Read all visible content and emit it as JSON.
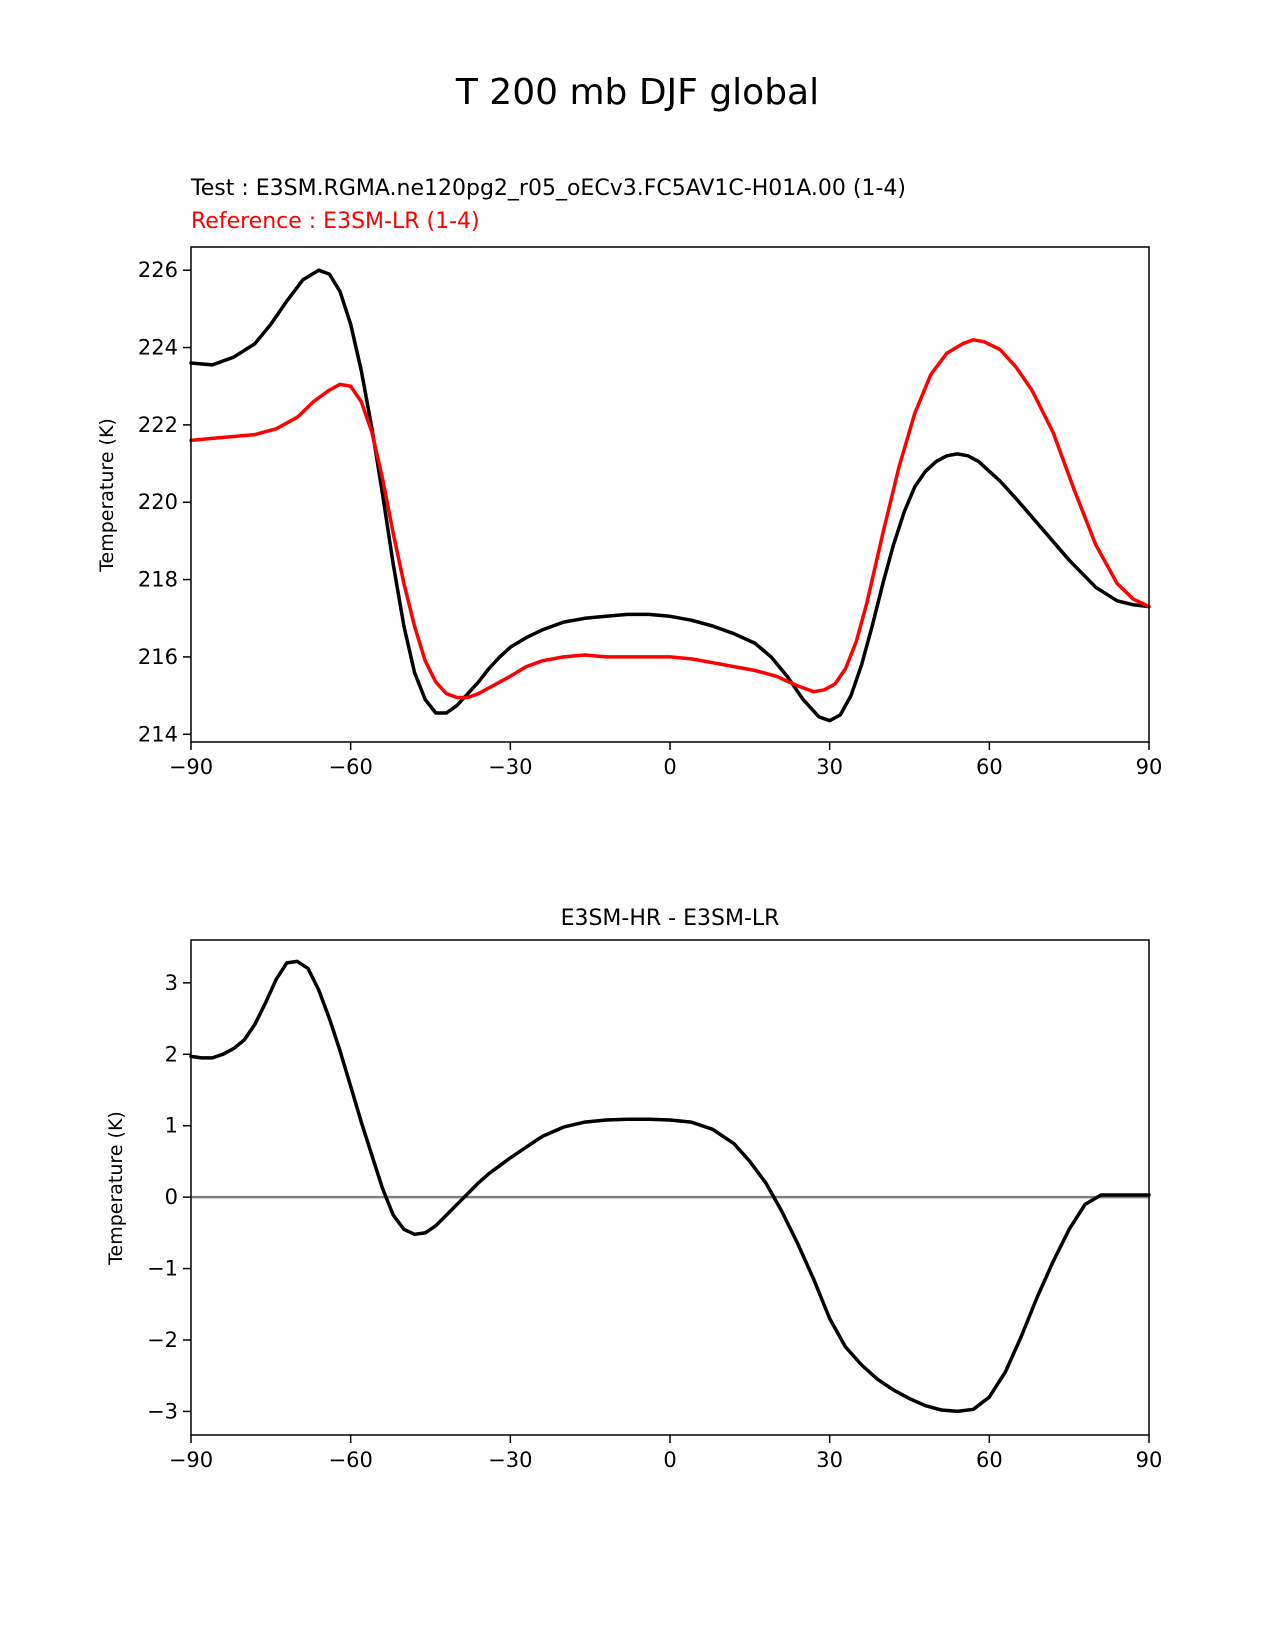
{
  "figure": {
    "title": "T 200 mb DJF global",
    "test_label": "Test : E3SM.RGMA.ne120pg2_r05_oECv3.FC5AV1C-H01A.00 (1-4)",
    "reference_label": "Reference : E3SM-LR (1-4)",
    "colors": {
      "test": "#000000",
      "reference": "#ff0000",
      "zero_line": "#808080"
    }
  },
  "chart_data": [
    {
      "type": "line",
      "title": "",
      "xlabel": "",
      "ylabel": "Temperature (K)",
      "xlim": [
        -90,
        90
      ],
      "ylim": [
        213.8,
        226.6
      ],
      "xticks": [
        -90,
        -60,
        -30,
        0,
        30,
        60,
        90
      ],
      "xtick_labels": [
        "−90",
        "−60",
        "−30",
        "0",
        "30",
        "60",
        "90"
      ],
      "yticks": [
        214,
        216,
        218,
        220,
        222,
        224,
        226
      ],
      "ytick_labels": [
        "214",
        "216",
        "218",
        "220",
        "222",
        "224",
        "226"
      ],
      "grid": false,
      "series": [
        {
          "role": "test",
          "x": [
            -90,
            -86,
            -82,
            -78,
            -75,
            -72,
            -69,
            -66,
            -64,
            -62,
            -60,
            -58,
            -56,
            -54,
            -52,
            -50,
            -48,
            -46,
            -44,
            -42,
            -40,
            -38,
            -36,
            -34,
            -32,
            -30,
            -27,
            -24,
            -20,
            -16,
            -12,
            -8,
            -4,
            0,
            4,
            8,
            12,
            16,
            19,
            22,
            25,
            28,
            30,
            32,
            34,
            36,
            38,
            40,
            42,
            44,
            46,
            48,
            50,
            52,
            54,
            56,
            58,
            60,
            62,
            65,
            70,
            75,
            80,
            84,
            87,
            90
          ],
          "y": [
            223.6,
            223.55,
            223.75,
            224.1,
            224.6,
            225.2,
            225.75,
            226.0,
            225.9,
            225.45,
            224.6,
            223.4,
            221.9,
            220.2,
            218.4,
            216.8,
            215.6,
            214.9,
            214.55,
            214.55,
            214.75,
            215.05,
            215.35,
            215.7,
            216.0,
            216.25,
            216.5,
            216.7,
            216.9,
            217.0,
            217.05,
            217.1,
            217.1,
            217.05,
            216.95,
            216.8,
            216.6,
            216.35,
            216.0,
            215.5,
            214.9,
            214.45,
            214.35,
            214.5,
            215.0,
            215.8,
            216.8,
            217.9,
            218.9,
            219.75,
            220.4,
            220.8,
            221.05,
            221.2,
            221.25,
            221.2,
            221.05,
            220.8,
            220.55,
            220.1,
            219.3,
            218.5,
            217.8,
            217.45,
            217.35,
            217.3
          ]
        },
        {
          "role": "reference",
          "x": [
            -90,
            -86,
            -82,
            -78,
            -74,
            -70,
            -67,
            -64,
            -62,
            -60,
            -58,
            -56,
            -54,
            -52,
            -50,
            -48,
            -46,
            -44,
            -42,
            -40,
            -38,
            -36,
            -34,
            -32,
            -30,
            -27,
            -24,
            -20,
            -16,
            -12,
            -8,
            -4,
            0,
            4,
            8,
            12,
            16,
            20,
            24,
            27,
            29,
            31,
            33,
            35,
            37,
            40,
            43,
            46,
            49,
            52,
            55,
            57,
            59,
            62,
            65,
            68,
            72,
            76,
            80,
            84,
            87,
            90
          ],
          "y": [
            221.6,
            221.65,
            221.7,
            221.75,
            221.9,
            222.2,
            222.6,
            222.9,
            223.05,
            223.0,
            222.6,
            221.8,
            220.6,
            219.2,
            217.9,
            216.8,
            215.9,
            215.35,
            215.05,
            214.95,
            214.95,
            215.05,
            215.2,
            215.35,
            215.5,
            215.75,
            215.9,
            216.0,
            216.05,
            216.0,
            216.0,
            216.0,
            216.0,
            215.95,
            215.85,
            215.75,
            215.65,
            215.5,
            215.25,
            215.1,
            215.15,
            215.3,
            215.7,
            216.4,
            217.4,
            219.2,
            220.9,
            222.3,
            223.3,
            223.85,
            224.1,
            224.2,
            224.15,
            223.95,
            223.5,
            222.9,
            221.8,
            220.3,
            218.9,
            217.9,
            217.5,
            217.3
          ]
        }
      ]
    },
    {
      "type": "line",
      "title": "E3SM-HR - E3SM-LR",
      "xlabel": "",
      "ylabel": "Temperature (K)",
      "xlim": [
        -90,
        90
      ],
      "ylim": [
        -3.33,
        3.6
      ],
      "xticks": [
        -90,
        -60,
        -30,
        0,
        30,
        60,
        90
      ],
      "xtick_labels": [
        "−90",
        "−60",
        "−30",
        "0",
        "30",
        "60",
        "90"
      ],
      "yticks": [
        -3,
        -2,
        -1,
        0,
        1,
        2,
        3
      ],
      "ytick_labels": [
        "−3",
        "−2",
        "−1",
        "0",
        "1",
        "2",
        "3"
      ],
      "grid": false,
      "zero_line": true,
      "series": [
        {
          "role": "difference",
          "x": [
            -90,
            -88,
            -86,
            -84,
            -82,
            -80,
            -78,
            -76,
            -74,
            -72,
            -70,
            -68,
            -66,
            -64,
            -62,
            -60,
            -58,
            -56,
            -54,
            -52,
            -50,
            -48,
            -46,
            -44,
            -42,
            -40,
            -38,
            -36,
            -34,
            -32,
            -30,
            -27,
            -24,
            -20,
            -16,
            -12,
            -8,
            -4,
            0,
            4,
            8,
            12,
            15,
            18,
            21,
            24,
            27,
            30,
            33,
            36,
            39,
            42,
            45,
            48,
            51,
            54,
            57,
            60,
            63,
            66,
            69,
            72,
            75,
            78,
            81,
            84,
            87,
            90
          ],
          "y": [
            1.97,
            1.95,
            1.95,
            2.0,
            2.08,
            2.2,
            2.42,
            2.72,
            3.05,
            3.28,
            3.3,
            3.2,
            2.9,
            2.5,
            2.05,
            1.55,
            1.05,
            0.58,
            0.12,
            -0.25,
            -0.45,
            -0.52,
            -0.5,
            -0.4,
            -0.25,
            -0.1,
            0.05,
            0.2,
            0.33,
            0.44,
            0.55,
            0.7,
            0.85,
            0.98,
            1.05,
            1.08,
            1.09,
            1.09,
            1.08,
            1.05,
            0.95,
            0.75,
            0.5,
            0.2,
            -0.2,
            -0.65,
            -1.15,
            -1.7,
            -2.1,
            -2.35,
            -2.55,
            -2.7,
            -2.82,
            -2.92,
            -2.98,
            -3.0,
            -2.97,
            -2.8,
            -2.45,
            -1.95,
            -1.4,
            -0.9,
            -0.45,
            -0.1,
            0.03,
            0.03,
            0.03,
            0.03
          ]
        }
      ]
    }
  ]
}
